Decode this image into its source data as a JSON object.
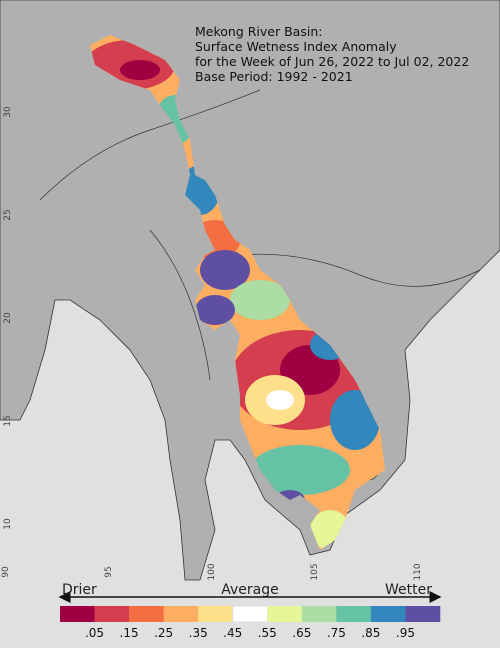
{
  "map": {
    "title_lines": [
      "Mekong River Basin:",
      "Surface Wetness Index Anomaly",
      "for the Week of Jun 26, 2022 to Jul 02, 2022",
      "Base Period: 1992 - 2021"
    ],
    "lat_ticks": [
      30,
      25,
      20,
      15,
      10
    ],
    "lon_ticks": [
      90,
      95,
      100,
      105,
      110
    ],
    "legend": {
      "left": "Drier",
      "center": "Average",
      "right": "Wetter"
    },
    "colorbar": {
      "colors": [
        "#9e0142",
        "#d53e4f",
        "#f46d43",
        "#fdae61",
        "#fee08b",
        "#ffffff",
        "#e6f598",
        "#abdda4",
        "#66c2a5",
        "#3288bd",
        "#5e4fa2"
      ],
      "labels": [
        ".05",
        ".15",
        ".25",
        ".35",
        ".45",
        ".55",
        ".65",
        ".75",
        ".85",
        ".95"
      ]
    }
  }
}
